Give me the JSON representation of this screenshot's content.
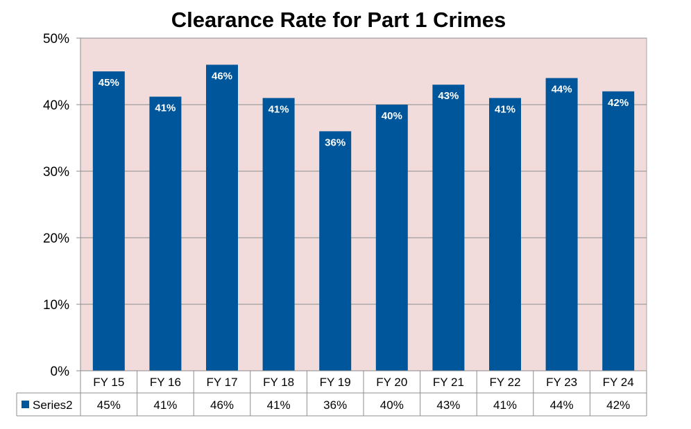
{
  "chart_data": {
    "type": "bar",
    "title": "Clearance Rate for Part 1 Crimes",
    "categories": [
      "FY 15",
      "FY 16",
      "FY 17",
      "FY 18",
      "FY 19",
      "FY 20",
      "FY 21",
      "FY 22",
      "FY 23",
      "FY 24"
    ],
    "series": [
      {
        "name": "Series2",
        "values": [
          45,
          41.2,
          46,
          41,
          36,
          40,
          43,
          41,
          44,
          42
        ],
        "labels": [
          "45%",
          "41%",
          "46%",
          "41%",
          "36%",
          "40%",
          "43%",
          "41%",
          "44%",
          "42%"
        ],
        "color": "#00569a"
      }
    ],
    "ylim": [
      0,
      50
    ],
    "yticks": [
      0,
      10,
      20,
      30,
      40,
      50
    ],
    "ytick_labels": [
      "0%",
      "10%",
      "20%",
      "30%",
      "40%",
      "50%"
    ],
    "grid": true,
    "plot_background": "#f2dcdb",
    "legend": "data-table"
  }
}
